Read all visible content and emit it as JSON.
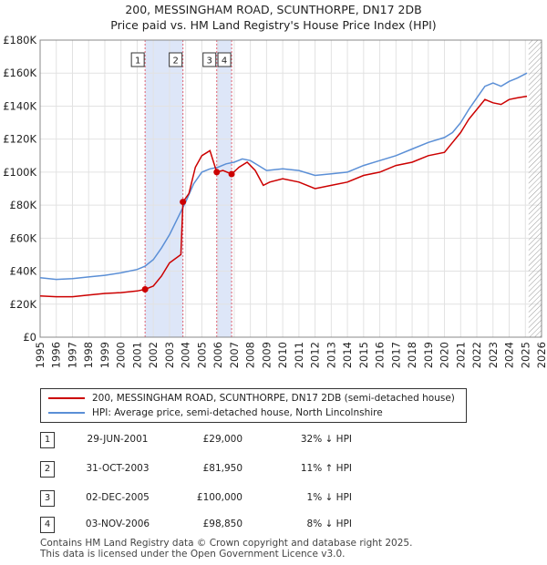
{
  "title_line1": "200, MESSINGHAM ROAD, SCUNTHORPE, DN17 2DB",
  "title_line2": "Price paid vs. HM Land Registry's House Price Index (HPI)",
  "colors": {
    "property": "#cc0000",
    "hpi": "#5b8fd6",
    "shade": "#dde6f8",
    "grid": "#e2e2e2",
    "vline": "#e06070"
  },
  "legend": {
    "property_label": "200, MESSINGHAM ROAD, SCUNTHORPE, DN17 2DB (semi-detached house)",
    "hpi_label": "HPI: Average price, semi-detached house, North Lincolnshire"
  },
  "transactions": [
    {
      "num": "1",
      "date": "29-JUN-2001",
      "price": "£29,000",
      "hpi": "32% ↓ HPI",
      "x": 2001.49,
      "y": 29000
    },
    {
      "num": "2",
      "date": "31-OCT-2003",
      "price": "£81,950",
      "hpi": "11% ↑ HPI",
      "x": 2003.83,
      "y": 81950
    },
    {
      "num": "3",
      "date": "02-DEC-2005",
      "price": "£100,000",
      "hpi": "1% ↓ HPI",
      "x": 2005.92,
      "y": 100000
    },
    {
      "num": "4",
      "date": "03-NOV-2006",
      "price": "£98,850",
      "hpi": "8% ↓ HPI",
      "x": 2006.84,
      "y": 98850
    }
  ],
  "footer_line1": "Contains HM Land Registry data © Crown copyright and database right 2025.",
  "footer_line2": "This data is licensed under the Open Government Licence v3.0.",
  "chart_data": {
    "type": "line",
    "title": "200, MESSINGHAM ROAD, SCUNTHORPE, DN17 2DB",
    "subtitle": "Price paid vs. HM Land Registry's House Price Index (HPI)",
    "xlabel": "",
    "ylabel": "",
    "xlim": [
      1995,
      2026
    ],
    "ylim": [
      0,
      180000
    ],
    "y_ticks": [
      {
        "value": 0,
        "label": "£0"
      },
      {
        "value": 20000,
        "label": "£20K"
      },
      {
        "value": 40000,
        "label": "£40K"
      },
      {
        "value": 60000,
        "label": "£60K"
      },
      {
        "value": 80000,
        "label": "£80K"
      },
      {
        "value": 100000,
        "label": "£100K"
      },
      {
        "value": 120000,
        "label": "£120K"
      },
      {
        "value": 140000,
        "label": "£140K"
      },
      {
        "value": 160000,
        "label": "£160K"
      },
      {
        "value": 180000,
        "label": "£180K"
      }
    ],
    "x_ticks": [
      "1995",
      "1996",
      "1997",
      "1998",
      "1999",
      "2000",
      "2001",
      "2002",
      "2003",
      "2004",
      "2005",
      "2006",
      "2007",
      "2008",
      "2009",
      "2010",
      "2011",
      "2012",
      "2013",
      "2014",
      "2015",
      "2016",
      "2017",
      "2018",
      "2019",
      "2020",
      "2021",
      "2022",
      "2023",
      "2024",
      "2025",
      "2026"
    ],
    "shaded_ranges": [
      [
        2001.49,
        2003.83
      ],
      [
        2005.92,
        2006.84
      ]
    ],
    "hatched_from": 2025.2,
    "series": [
      {
        "name": "200, MESSINGHAM ROAD, SCUNTHORPE, DN17 2DB (semi-detached house)",
        "x": [
          1995,
          1996,
          1997,
          1998,
          1999,
          2000,
          2001,
          2001.49,
          2002,
          2002.5,
          2003,
          2003.7,
          2003.83,
          2004.2,
          2004.6,
          2005,
          2005.5,
          2005.92,
          2006.3,
          2006.84,
          2007.3,
          2007.8,
          2008.3,
          2008.8,
          2009.2,
          2010,
          2011,
          2012,
          2013,
          2014,
          2015,
          2016,
          2017,
          2018,
          2019,
          2020,
          2020.5,
          2021,
          2021.5,
          2022,
          2022.5,
          2023,
          2023.5,
          2024,
          2024.5,
          2025.1
        ],
        "values": [
          25000,
          24500,
          24500,
          25500,
          26500,
          27000,
          28000,
          29000,
          31000,
          37000,
          45000,
          50000,
          81950,
          87000,
          103000,
          110000,
          113000,
          100000,
          101000,
          98850,
          103000,
          106000,
          101000,
          92000,
          94000,
          96000,
          94000,
          90000,
          92000,
          94000,
          98000,
          100000,
          104000,
          106000,
          110000,
          112000,
          118000,
          124000,
          132000,
          138000,
          144000,
          142000,
          141000,
          144000,
          145000,
          146000
        ]
      },
      {
        "name": "HPI: Average price, semi-detached house, North Lincolnshire",
        "x": [
          1995,
          1996,
          1997,
          1998,
          1999,
          2000,
          2001,
          2001.49,
          2002,
          2002.5,
          2003,
          2003.5,
          2004,
          2004.5,
          2005,
          2005.5,
          2006,
          2006.5,
          2007,
          2007.5,
          2008,
          2008.5,
          2009,
          2010,
          2011,
          2012,
          2013,
          2014,
          2015,
          2016,
          2017,
          2018,
          2019,
          2020,
          2020.5,
          2021,
          2021.5,
          2022,
          2022.5,
          2023,
          2023.5,
          2024,
          2024.5,
          2025.1
        ],
        "values": [
          36000,
          35000,
          35500,
          36500,
          37500,
          39000,
          41000,
          43000,
          47000,
          54000,
          62000,
          72000,
          82000,
          93000,
          100000,
          102000,
          103000,
          105000,
          106000,
          108000,
          107000,
          104000,
          101000,
          102000,
          101000,
          98000,
          99000,
          100000,
          104000,
          107000,
          110000,
          114000,
          118000,
          121000,
          124000,
          130000,
          138000,
          145000,
          152000,
          154000,
          152000,
          155000,
          157000,
          160000
        ]
      }
    ]
  }
}
